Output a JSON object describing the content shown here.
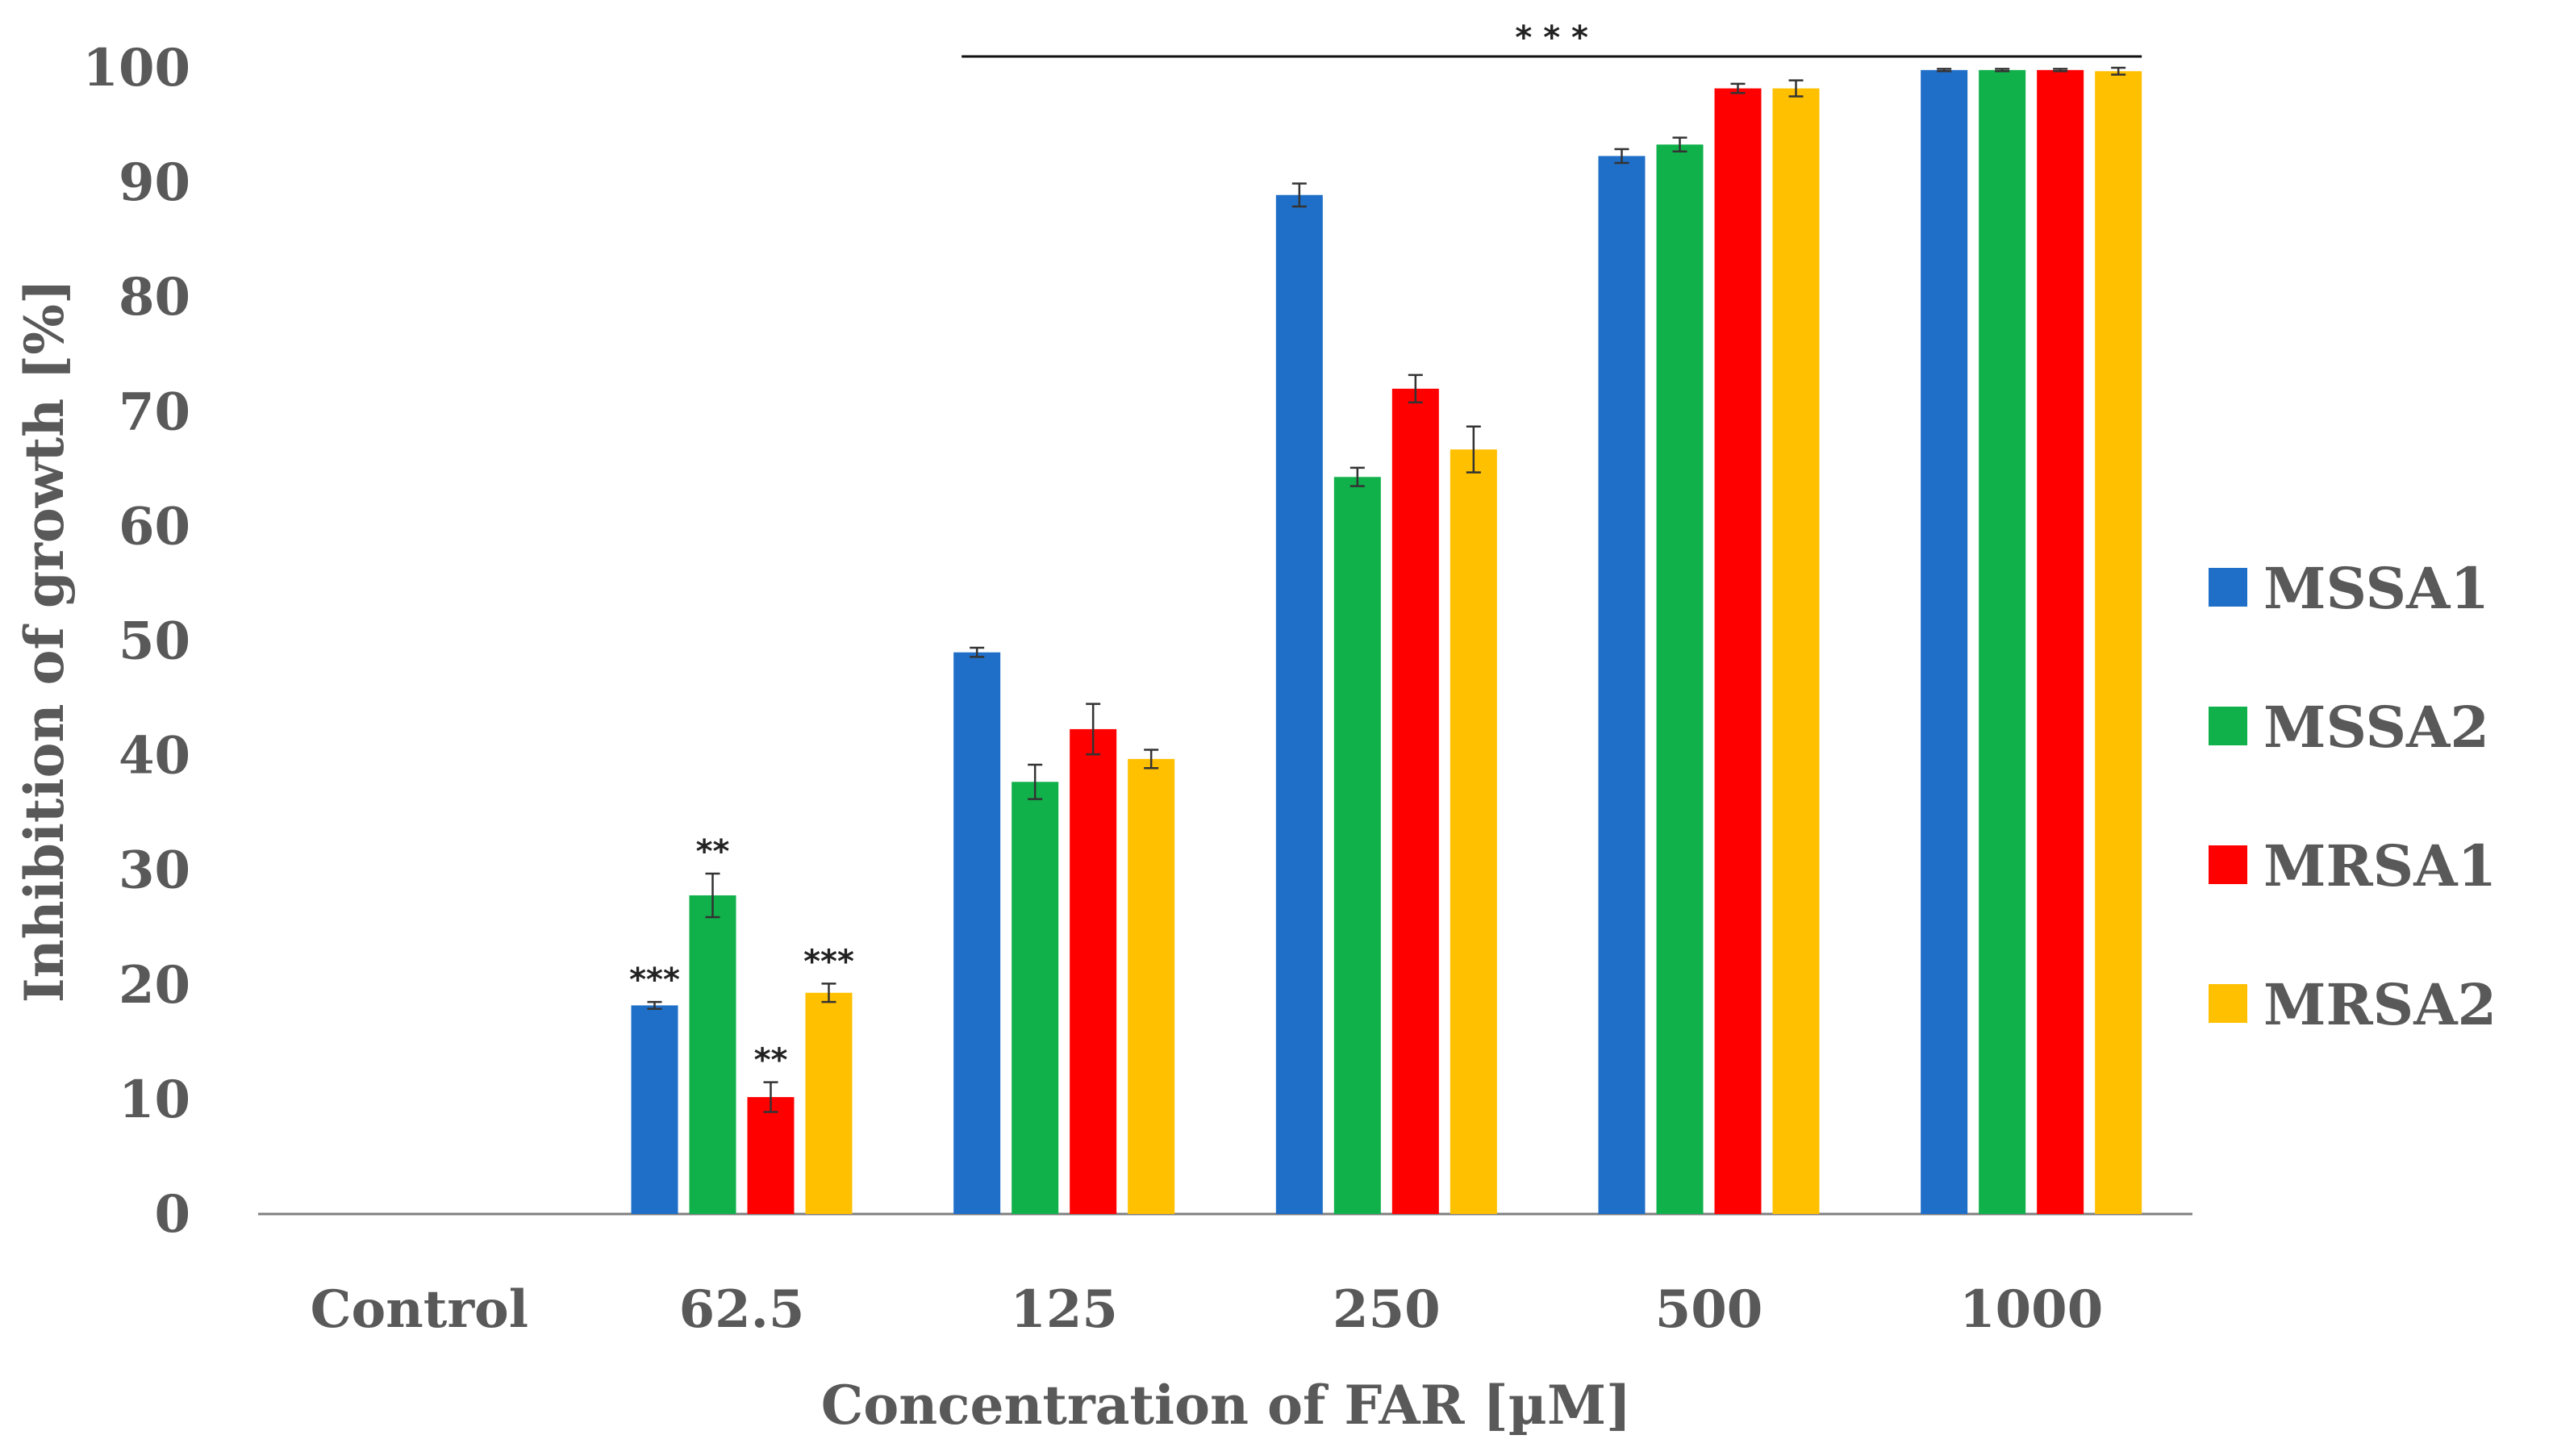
{
  "chart_data": {
    "type": "bar",
    "title": "",
    "xlabel": "Concentration of FAR [µM]",
    "ylabel": "Inhibition of growth [%]",
    "ylim": [
      0,
      100
    ],
    "yticks": [
      0,
      10,
      20,
      30,
      40,
      50,
      60,
      70,
      80,
      90,
      100
    ],
    "grid": false,
    "legend_position": "right",
    "categories": [
      "Control",
      "62.5",
      "125",
      "250",
      "500",
      "1000"
    ],
    "series": [
      {
        "name": "MSSA1",
        "color": "#1f6fc8",
        "values": [
          0,
          18.2,
          49.0,
          88.9,
          92.3,
          99.8
        ],
        "errors": [
          0,
          0.3,
          0.4,
          1.0,
          0.6,
          0.1
        ]
      },
      {
        "name": "MSSA2",
        "color": "#10b04a",
        "values": [
          0,
          27.8,
          37.7,
          64.3,
          93.3,
          99.8
        ],
        "errors": [
          0,
          1.9,
          1.5,
          0.8,
          0.6,
          0.1
        ]
      },
      {
        "name": "MRSA1",
        "color": "#ff0000",
        "values": [
          0,
          10.2,
          42.3,
          72.0,
          98.2,
          99.8
        ],
        "errors": [
          0,
          1.3,
          2.2,
          1.2,
          0.4,
          0.1
        ]
      },
      {
        "name": "MRSA2",
        "color": "#ffc000",
        "values": [
          0,
          19.3,
          39.7,
          66.7,
          98.2,
          99.7
        ],
        "errors": [
          0,
          0.8,
          0.8,
          2.0,
          0.7,
          0.3
        ]
      }
    ],
    "bar_annotations": [
      {
        "category": "62.5",
        "series": "MSSA1",
        "text": "***"
      },
      {
        "category": "62.5",
        "series": "MSSA2",
        "text": "**"
      },
      {
        "category": "62.5",
        "series": "MRSA1",
        "text": "**"
      },
      {
        "category": "62.5",
        "series": "MRSA2",
        "text": "***"
      }
    ],
    "bracket_annotation": {
      "from_category": "125",
      "to_category": "1000",
      "text": "* * *"
    }
  }
}
